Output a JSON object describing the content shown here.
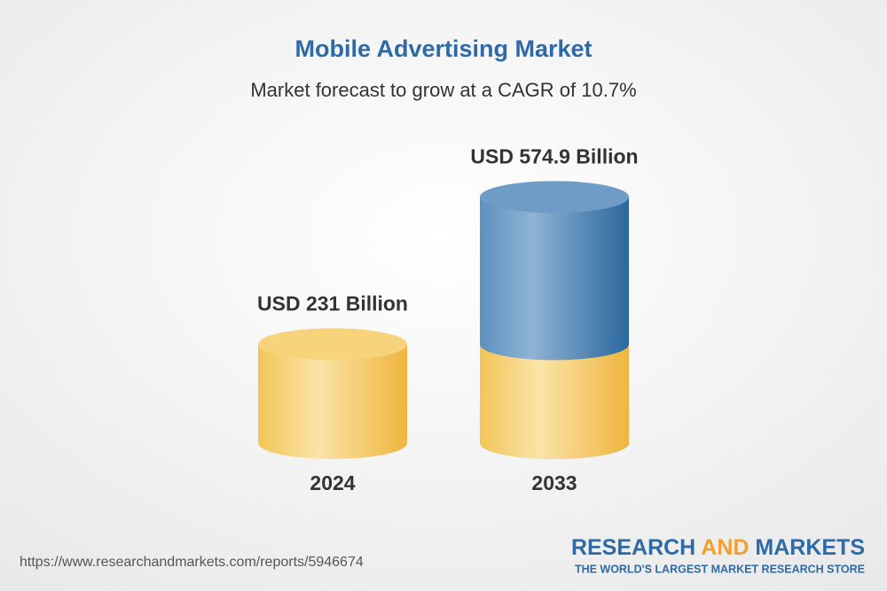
{
  "chart_data": {
    "type": "cylinder",
    "title": "Mobile Advertising Market",
    "subtitle": "Market forecast to grow at a CAGR of 10.7%",
    "categories": [
      "2024",
      "2033"
    ],
    "values": [
      231,
      574.9
    ],
    "value_labels": [
      "USD 231 Billion",
      "USD 574.9 Billion"
    ]
  },
  "footer": {
    "source": "https://www.researchandmarkets.com/reports/5946674",
    "brand_research": "RESEARCH",
    "brand_and": "AND",
    "brand_markets": "MARKETS",
    "tagline": "THE WORLD'S LARGEST MARKET RESEARCH STORE"
  }
}
